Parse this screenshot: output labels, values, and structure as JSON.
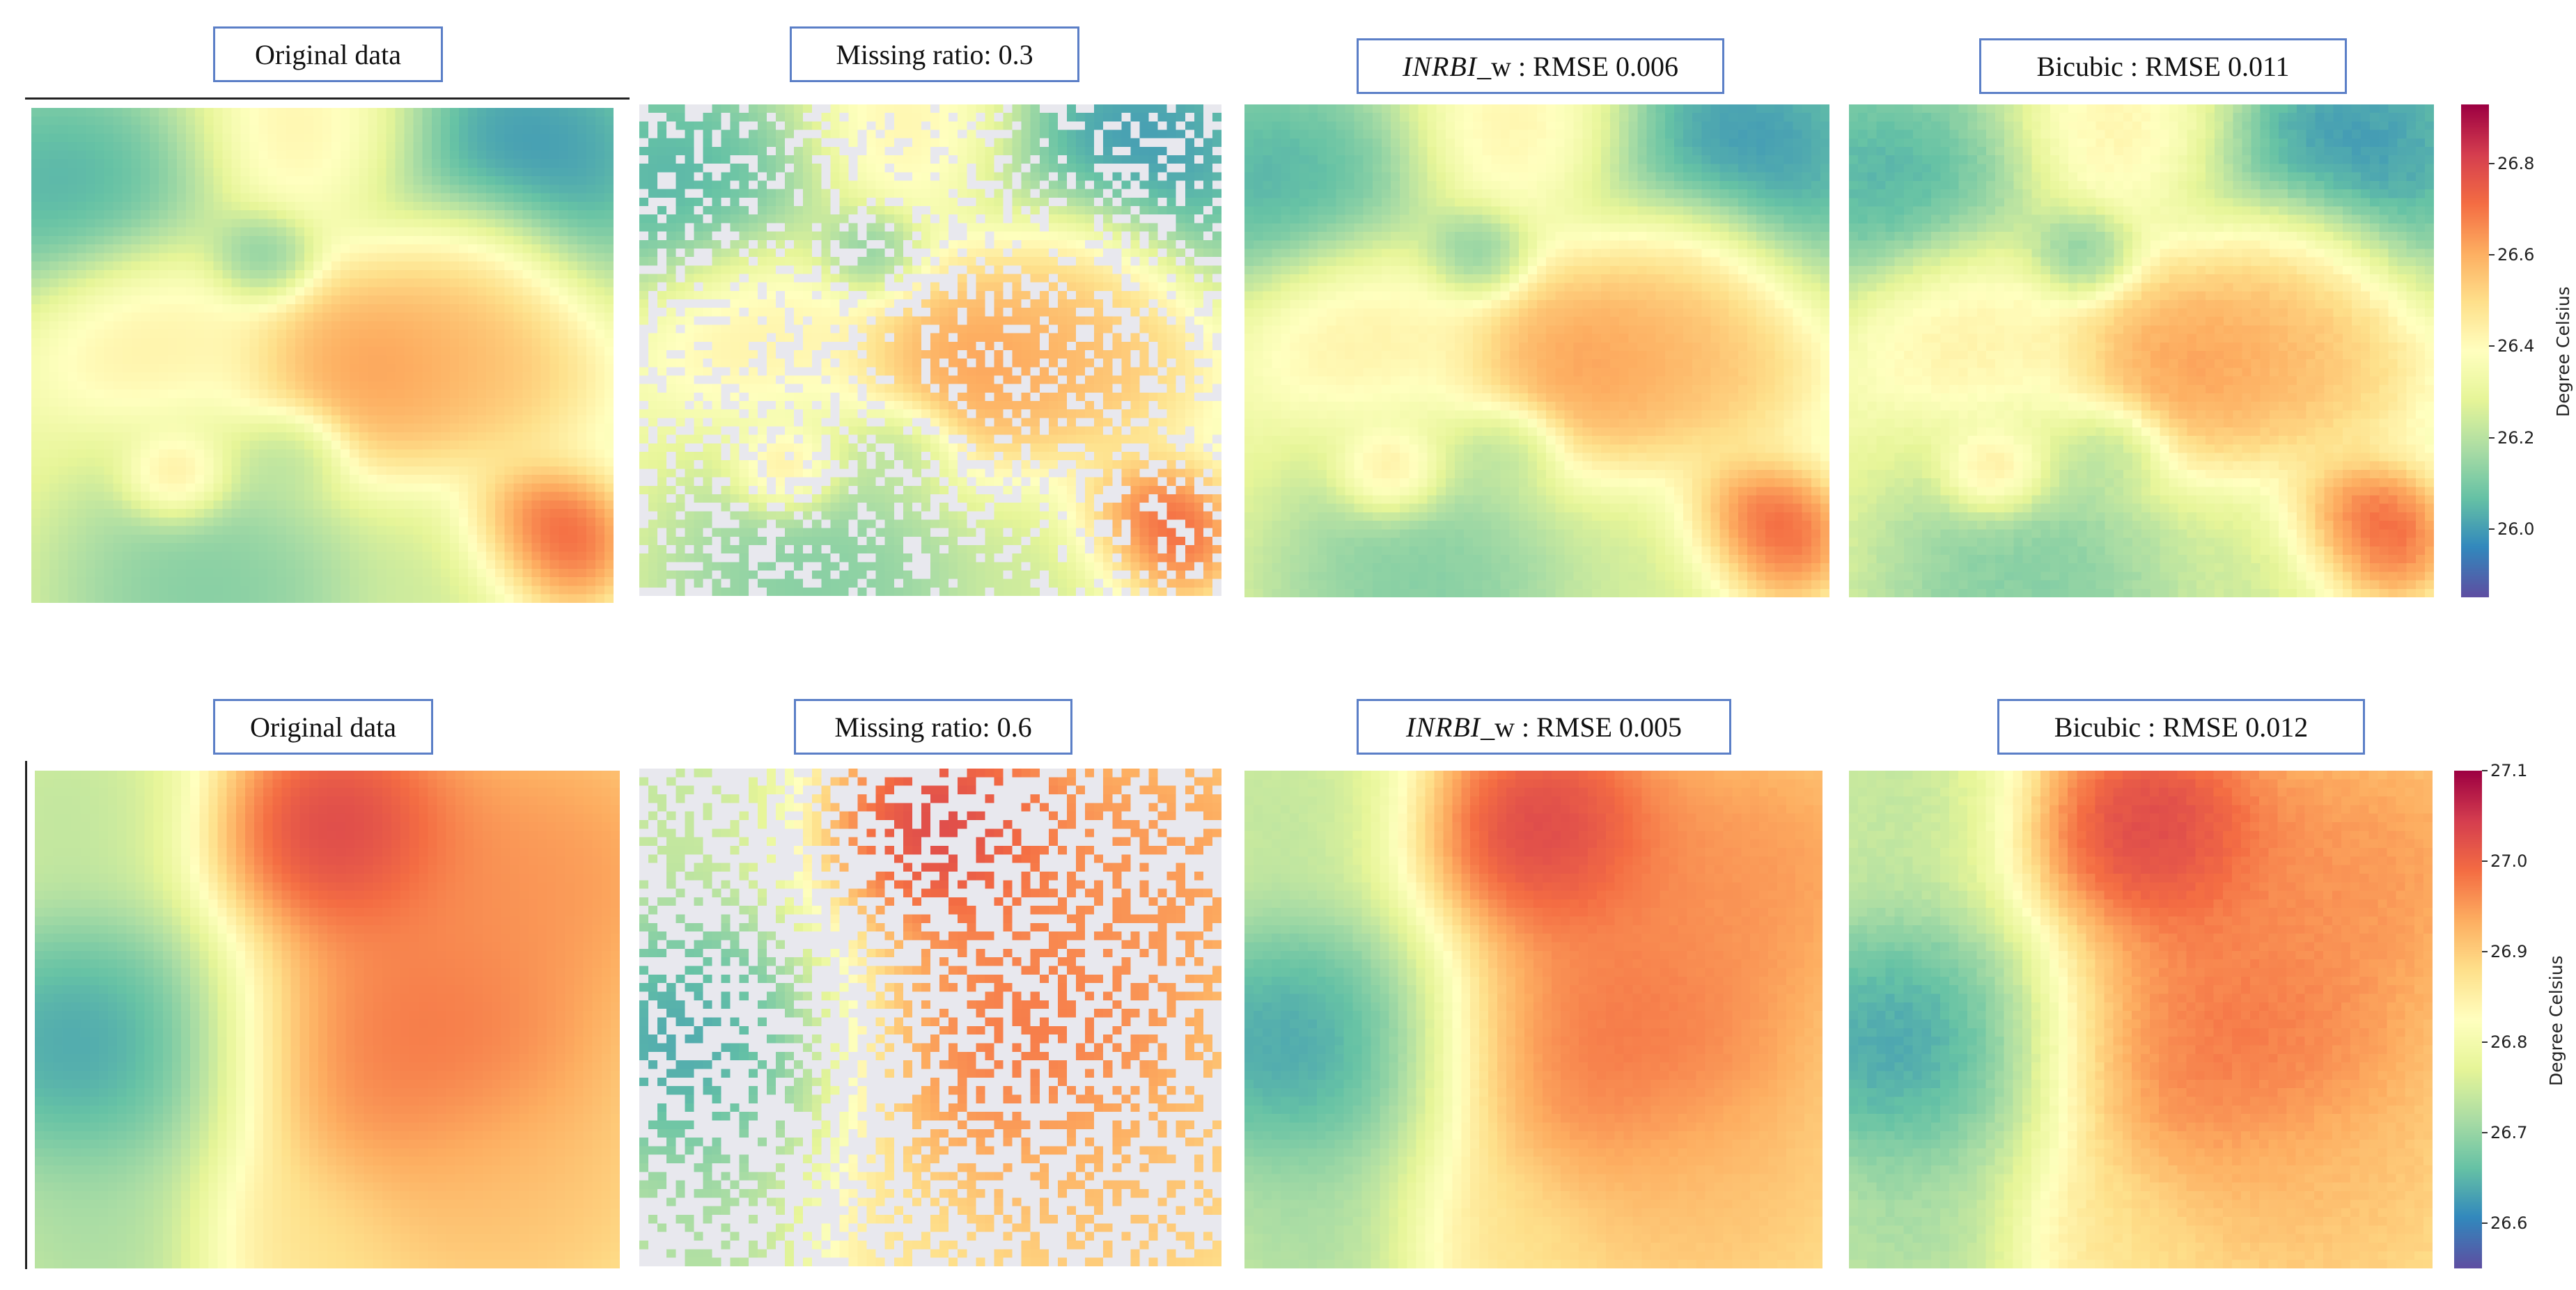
{
  "chart_data": [
    {
      "type": "heatmap",
      "row": 1,
      "titles": [
        {
          "plain": "Original data"
        },
        {
          "plain": "Missing ratio: 0.3"
        },
        {
          "italic": "INRBI",
          "plain": "_w : RMSE 0.006"
        },
        {
          "plain": "Bicubic : RMSE 0.011"
        }
      ],
      "missing_ratio": 0.3,
      "rmse": {
        "INRBI_w": 0.006,
        "Bicubic": 0.011
      },
      "colorbar": {
        "label": "Degree Celsius",
        "range": [
          25.85,
          26.93
        ],
        "ticks": [
          "26.0",
          "26.2",
          "26.4",
          "26.6",
          "26.8"
        ],
        "tick_values": [
          26.0,
          26.2,
          26.4,
          26.6,
          26.8
        ],
        "colormap": "Spectral_r"
      },
      "blobs": [
        {
          "x": 0.5,
          "y": 0.05,
          "value": 26.48,
          "s": 0.1
        },
        {
          "x": 0.85,
          "y": 0.1,
          "value": 25.88,
          "s": 0.16
        },
        {
          "x": 0.05,
          "y": 0.15,
          "value": 25.95,
          "s": 0.14
        },
        {
          "x": 0.4,
          "y": 0.3,
          "value": 26.05,
          "s": 0.05
        },
        {
          "x": 0.75,
          "y": 0.35,
          "value": 26.65,
          "s": 0.1
        },
        {
          "x": 0.6,
          "y": 0.52,
          "value": 26.72,
          "s": 0.12
        },
        {
          "x": 0.8,
          "y": 0.52,
          "value": 26.6,
          "s": 0.1
        },
        {
          "x": 0.25,
          "y": 0.75,
          "value": 26.58,
          "s": 0.05
        },
        {
          "x": 0.45,
          "y": 0.7,
          "value": 26.15,
          "s": 0.05
        },
        {
          "x": 0.88,
          "y": 0.88,
          "value": 26.92,
          "s": 0.08
        },
        {
          "x": 0.3,
          "y": 0.98,
          "value": 26.05,
          "s": 0.16
        },
        {
          "x": 0.75,
          "y": 0.95,
          "value": 26.2,
          "s": 0.09
        },
        {
          "x": 0.18,
          "y": 0.45,
          "value": 26.48,
          "s": 0.1
        }
      ],
      "background": 26.33
    },
    {
      "type": "heatmap",
      "row": 2,
      "titles": [
        {
          "plain": "Original data"
        },
        {
          "plain": "Missing ratio: 0.6"
        },
        {
          "italic": "INRBI",
          "plain": "_w : RMSE 0.005"
        },
        {
          "plain": "Bicubic : RMSE 0.012"
        }
      ],
      "missing_ratio": 0.6,
      "rmse": {
        "INRBI_w": 0.005,
        "Bicubic": 0.012
      },
      "colorbar": {
        "label": "Degree Celsius",
        "range": [
          26.55,
          27.1
        ],
        "ticks": [
          "26.6",
          "26.7",
          "26.8",
          "26.9",
          "27.0",
          "27.1"
        ],
        "tick_values": [
          26.6,
          26.7,
          26.8,
          26.9,
          27.0,
          27.1
        ],
        "colormap": "Spectral_r"
      },
      "blobs": [
        {
          "x": 0.08,
          "y": 0.55,
          "value": 26.56,
          "s": 0.18
        },
        {
          "x": 0.05,
          "y": 0.05,
          "value": 26.7,
          "s": 0.14
        },
        {
          "x": 0.1,
          "y": 0.98,
          "value": 26.68,
          "s": 0.14
        },
        {
          "x": 0.52,
          "y": 0.12,
          "value": 27.09,
          "s": 0.12
        },
        {
          "x": 0.85,
          "y": 0.2,
          "value": 26.98,
          "s": 0.16
        },
        {
          "x": 0.65,
          "y": 0.55,
          "value": 27.02,
          "s": 0.18
        },
        {
          "x": 0.8,
          "y": 0.85,
          "value": 26.92,
          "s": 0.14
        },
        {
          "x": 0.45,
          "y": 0.95,
          "value": 26.88,
          "s": 0.1
        }
      ],
      "background": 26.86
    }
  ],
  "colors": {
    "label_border": "#5b7fc7",
    "missing": "#e8e8ee"
  }
}
